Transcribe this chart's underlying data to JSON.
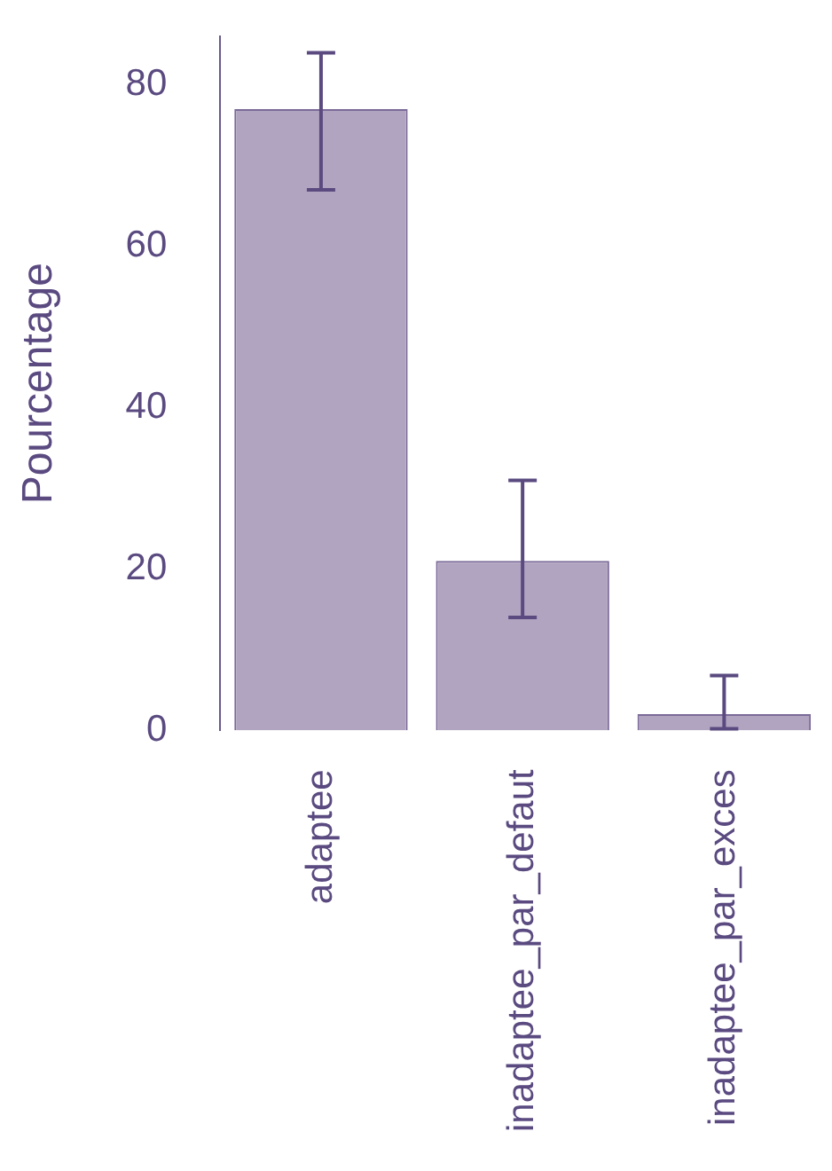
{
  "chart_data": {
    "type": "bar",
    "ylabel": "Pourcentage",
    "categories": [
      "adaptee",
      "inadaptee_par_defaut",
      "inadaptee_par_exces"
    ],
    "values": [
      77,
      21,
      2
    ],
    "errors": [
      [
        67,
        84
      ],
      [
        14,
        31
      ],
      [
        0.2,
        6.8
      ]
    ],
    "color": "#b1a4c0",
    "ylim": [
      0,
      86
    ],
    "yticks": [
      0,
      20,
      40,
      60,
      80
    ],
    "grid": false,
    "legend": false
  }
}
